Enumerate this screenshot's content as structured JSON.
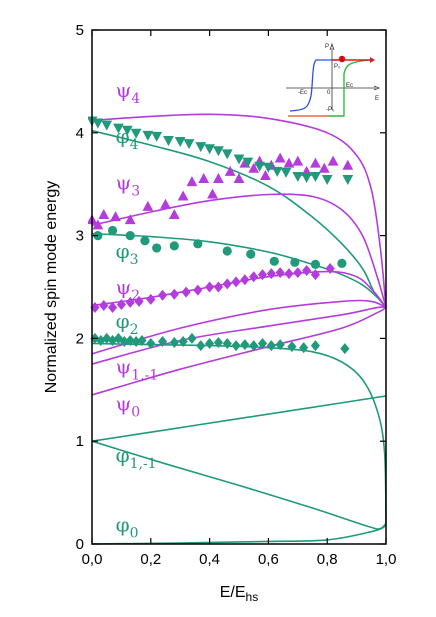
{
  "chart_data": {
    "type": "scatter",
    "xlabel": "E/E",
    "xlabel_sub": "hs",
    "ylabel": "Normalized spin mode energy",
    "xlim": [
      0,
      1.0
    ],
    "ylim": [
      0,
      5
    ],
    "xticks": [
      {
        "v": 0.0,
        "label": "0,0"
      },
      {
        "v": 0.2,
        "label": "0,2"
      },
      {
        "v": 0.4,
        "label": "0,4"
      },
      {
        "v": 0.6,
        "label": "0,6"
      },
      {
        "v": 0.8,
        "label": "0,8"
      },
      {
        "v": 1.0,
        "label": "1,0"
      }
    ],
    "yticks": [
      {
        "v": 0,
        "label": "0"
      },
      {
        "v": 1,
        "label": "1"
      },
      {
        "v": 2,
        "label": "2"
      },
      {
        "v": 3,
        "label": "3"
      },
      {
        "v": 4,
        "label": "4"
      },
      {
        "v": 5,
        "label": "5"
      }
    ],
    "colors": {
      "psi": "#b43cdc",
      "phi": "#219a7c"
    },
    "curves": [
      {
        "color": "psi",
        "points": [
          [
            0,
            4.12
          ],
          [
            0.2,
            4.16
          ],
          [
            0.4,
            4.18
          ],
          [
            0.6,
            4.14
          ],
          [
            0.8,
            4.0
          ],
          [
            0.9,
            3.78
          ],
          [
            0.95,
            3.45
          ],
          [
            0.98,
            2.9
          ],
          [
            1.0,
            2.3
          ]
        ]
      },
      {
        "color": "phi",
        "points": [
          [
            0,
            4.02
          ],
          [
            0.2,
            3.88
          ],
          [
            0.4,
            3.72
          ],
          [
            0.6,
            3.48
          ],
          [
            0.75,
            3.18
          ],
          [
            0.85,
            2.92
          ],
          [
            0.92,
            2.68
          ],
          [
            0.96,
            2.45
          ],
          [
            1.0,
            2.3
          ]
        ]
      },
      {
        "color": "psi",
        "points": [
          [
            0,
            3.1
          ],
          [
            0.2,
            3.23
          ],
          [
            0.4,
            3.34
          ],
          [
            0.6,
            3.4
          ],
          [
            0.75,
            3.38
          ],
          [
            0.85,
            3.25
          ],
          [
            0.92,
            3.0
          ],
          [
            0.97,
            2.6
          ],
          [
            1.0,
            2.3
          ]
        ]
      },
      {
        "color": "phi",
        "points": [
          [
            0,
            3.02
          ],
          [
            0.2,
            2.99
          ],
          [
            0.4,
            2.94
          ],
          [
            0.6,
            2.84
          ],
          [
            0.75,
            2.72
          ],
          [
            0.85,
            2.62
          ],
          [
            0.92,
            2.52
          ],
          [
            0.97,
            2.4
          ],
          [
            1.0,
            2.3
          ]
        ]
      },
      {
        "color": "psi",
        "points": [
          [
            0,
            2.32
          ],
          [
            0.2,
            2.4
          ],
          [
            0.4,
            2.5
          ],
          [
            0.6,
            2.6
          ],
          [
            0.8,
            2.65
          ],
          [
            0.9,
            2.6
          ],
          [
            0.96,
            2.45
          ],
          [
            1.0,
            2.3
          ]
        ]
      },
      {
        "color": "phi",
        "points": [
          [
            0,
            1.95
          ],
          [
            0.2,
            1.94
          ],
          [
            0.4,
            1.93
          ],
          [
            0.6,
            1.91
          ],
          [
            0.75,
            1.87
          ],
          [
            0.85,
            1.77
          ],
          [
            0.92,
            1.6
          ],
          [
            0.97,
            1.3
          ],
          [
            0.995,
            0.9
          ],
          [
            1.0,
            0.2
          ]
        ]
      },
      {
        "color": "psi",
        "points": [
          [
            0,
            1.85
          ],
          [
            0.3,
            2.1
          ],
          [
            0.6,
            2.28
          ],
          [
            0.85,
            2.36
          ],
          [
            0.95,
            2.36
          ],
          [
            1.0,
            2.3
          ]
        ]
      },
      {
        "color": "psi",
        "points": [
          [
            0,
            1.75
          ],
          [
            0.3,
            1.98
          ],
          [
            0.6,
            2.12
          ],
          [
            0.85,
            2.23
          ],
          [
            0.97,
            2.3
          ],
          [
            1.0,
            2.3
          ]
        ]
      },
      {
        "color": "psi",
        "points": [
          [
            0,
            1.45
          ],
          [
            0.3,
            1.7
          ],
          [
            0.6,
            1.92
          ],
          [
            0.85,
            2.1
          ],
          [
            0.97,
            2.25
          ],
          [
            1.0,
            2.3
          ]
        ]
      },
      {
        "color": "phi",
        "points": [
          [
            0,
            1.0
          ],
          [
            0.25,
            1.11
          ],
          [
            0.5,
            1.22
          ],
          [
            0.75,
            1.33
          ],
          [
            1.0,
            1.44
          ]
        ]
      },
      {
        "color": "phi",
        "points": [
          [
            0,
            1.0
          ],
          [
            0.25,
            0.78
          ],
          [
            0.5,
            0.57
          ],
          [
            0.75,
            0.35
          ],
          [
            0.94,
            0.17
          ],
          [
            0.98,
            0.15
          ],
          [
            1.0,
            0.2
          ]
        ]
      },
      {
        "color": "phi",
        "points": [
          [
            0,
            0.0
          ],
          [
            0.3,
            0.01
          ],
          [
            0.6,
            0.025
          ],
          [
            0.8,
            0.04
          ],
          [
            0.95,
            0.12
          ],
          [
            0.99,
            0.16
          ],
          [
            1.0,
            0.2
          ]
        ]
      }
    ],
    "markers": [
      {
        "color": "psi",
        "shape": "triangle-up",
        "points": [
          [
            0.0,
            3.15
          ],
          [
            0.02,
            3.1
          ],
          [
            0.04,
            3.2
          ],
          [
            0.08,
            3.18
          ],
          [
            0.13,
            3.15
          ],
          [
            0.19,
            3.28
          ],
          [
            0.25,
            3.3
          ],
          [
            0.28,
            3.2
          ],
          [
            0.31,
            3.38
          ],
          [
            0.34,
            3.52
          ],
          [
            0.38,
            3.55
          ],
          [
            0.41,
            3.4
          ],
          [
            0.43,
            3.55
          ],
          [
            0.47,
            3.62
          ],
          [
            0.5,
            3.55
          ],
          [
            0.52,
            3.7
          ],
          [
            0.55,
            3.65
          ],
          [
            0.57,
            3.72
          ],
          [
            0.59,
            3.58
          ],
          [
            0.61,
            3.68
          ],
          [
            0.64,
            3.75
          ],
          [
            0.67,
            3.7
          ],
          [
            0.7,
            3.72
          ],
          [
            0.73,
            3.62
          ],
          [
            0.76,
            3.7
          ],
          [
            0.79,
            3.65
          ],
          [
            0.82,
            3.72
          ],
          [
            0.87,
            3.68
          ]
        ]
      },
      {
        "color": "phi",
        "shape": "triangle-down",
        "points": [
          [
            0.0,
            4.12
          ],
          [
            0.02,
            4.1
          ],
          [
            0.05,
            4.08
          ],
          [
            0.09,
            4.05
          ],
          [
            0.12,
            4.03
          ],
          [
            0.15,
            4.0
          ],
          [
            0.19,
            3.98
          ],
          [
            0.22,
            3.97
          ],
          [
            0.26,
            3.93
          ],
          [
            0.3,
            3.92
          ],
          [
            0.33,
            3.9
          ],
          [
            0.37,
            3.87
          ],
          [
            0.4,
            3.85
          ],
          [
            0.43,
            3.83
          ],
          [
            0.46,
            3.8
          ],
          [
            0.5,
            3.75
          ],
          [
            0.53,
            3.72
          ],
          [
            0.57,
            3.68
          ],
          [
            0.6,
            3.67
          ],
          [
            0.63,
            3.63
          ],
          [
            0.66,
            3.62
          ],
          [
            0.7,
            3.58
          ],
          [
            0.73,
            3.57
          ],
          [
            0.76,
            3.58
          ],
          [
            0.8,
            3.55
          ],
          [
            0.87,
            3.55
          ]
        ]
      },
      {
        "color": "phi",
        "shape": "circle",
        "points": [
          [
            0.02,
            3.0
          ],
          [
            0.07,
            3.05
          ],
          [
            0.13,
            3.0
          ],
          [
            0.18,
            2.95
          ],
          [
            0.22,
            2.88
          ],
          [
            0.28,
            2.9
          ],
          [
            0.36,
            2.92
          ],
          [
            0.46,
            2.85
          ],
          [
            0.54,
            2.82
          ],
          [
            0.62,
            2.75
          ],
          [
            0.69,
            2.74
          ],
          [
            0.76,
            2.72
          ],
          [
            0.85,
            2.73
          ]
        ]
      },
      {
        "color": "psi",
        "shape": "diamond",
        "points": [
          [
            0.01,
            2.3
          ],
          [
            0.04,
            2.32
          ],
          [
            0.07,
            2.3
          ],
          [
            0.1,
            2.33
          ],
          [
            0.13,
            2.35
          ],
          [
            0.16,
            2.36
          ],
          [
            0.2,
            2.38
          ],
          [
            0.24,
            2.42
          ],
          [
            0.28,
            2.43
          ],
          [
            0.32,
            2.45
          ],
          [
            0.36,
            2.47
          ],
          [
            0.4,
            2.5
          ],
          [
            0.43,
            2.5
          ],
          [
            0.46,
            2.53
          ],
          [
            0.49,
            2.55
          ],
          [
            0.52,
            2.57
          ],
          [
            0.55,
            2.6
          ],
          [
            0.58,
            2.62
          ],
          [
            0.61,
            2.63
          ],
          [
            0.64,
            2.64
          ],
          [
            0.67,
            2.63
          ],
          [
            0.7,
            2.64
          ],
          [
            0.73,
            2.66
          ],
          [
            0.76,
            2.62
          ],
          [
            0.81,
            2.68
          ]
        ]
      },
      {
        "color": "phi",
        "shape": "diamond",
        "points": [
          [
            0.01,
            2.0
          ],
          [
            0.03,
            1.98
          ],
          [
            0.05,
            2.0
          ],
          [
            0.07,
            1.98
          ],
          [
            0.09,
            2.0
          ],
          [
            0.11,
            1.97
          ],
          [
            0.13,
            1.98
          ],
          [
            0.15,
            1.97
          ],
          [
            0.17,
            1.98
          ],
          [
            0.2,
            1.95
          ],
          [
            0.24,
            1.97
          ],
          [
            0.28,
            1.96
          ],
          [
            0.31,
            1.97
          ],
          [
            0.34,
            2.0
          ],
          [
            0.37,
            1.93
          ],
          [
            0.4,
            1.95
          ],
          [
            0.43,
            1.96
          ],
          [
            0.46,
            1.95
          ],
          [
            0.49,
            1.93
          ],
          [
            0.52,
            1.94
          ],
          [
            0.55,
            1.93
          ],
          [
            0.58,
            1.95
          ],
          [
            0.61,
            1.93
          ],
          [
            0.64,
            1.94
          ],
          [
            0.68,
            1.92
          ],
          [
            0.72,
            1.91
          ],
          [
            0.76,
            1.93
          ],
          [
            0.86,
            1.9
          ]
        ]
      }
    ],
    "curve_labels": [
      {
        "base": "ψ",
        "sub": "4",
        "color": "psi",
        "x": 0.07,
        "y": 4.35
      },
      {
        "base": "φ",
        "sub": "4",
        "color": "phi",
        "x": 0.07,
        "y": 3.9
      },
      {
        "base": "ψ",
        "sub": "3",
        "color": "psi",
        "x": 0.07,
        "y": 3.45
      },
      {
        "base": "φ",
        "sub": "3",
        "color": "phi",
        "x": 0.07,
        "y": 2.78
      },
      {
        "base": "ψ",
        "sub": "2",
        "color": "psi",
        "x": 0.07,
        "y": 2.43
      },
      {
        "base": "φ",
        "sub": "2",
        "color": "phi",
        "x": 0.07,
        "y": 2.1
      },
      {
        "base": "ψ",
        "sub": "1,-1",
        "color": "psi",
        "x": 0.07,
        "y": 1.66
      },
      {
        "base": "ψ",
        "sub": "0",
        "color": "psi",
        "x": 0.07,
        "y": 1.3
      },
      {
        "base": "φ",
        "sub": "1,-1",
        "color": "phi",
        "x": 0.07,
        "y": 0.8
      },
      {
        "base": "φ",
        "sub": "0",
        "color": "phi",
        "x": 0.07,
        "y": 0.12
      }
    ],
    "inset": {
      "labels": {
        "p_axis": "P",
        "e_axis": "E",
        "p0": "P₀",
        "minus_p0": "-P₀",
        "ec": "Eᴄ",
        "minus_ec": "-Eᴄ",
        "zero_label": "0",
        "marker": "1"
      },
      "colors": {
        "blue": "#2a50e8",
        "green": "#22b83a",
        "orange": "#e84a20",
        "red": "#e01818"
      }
    }
  }
}
